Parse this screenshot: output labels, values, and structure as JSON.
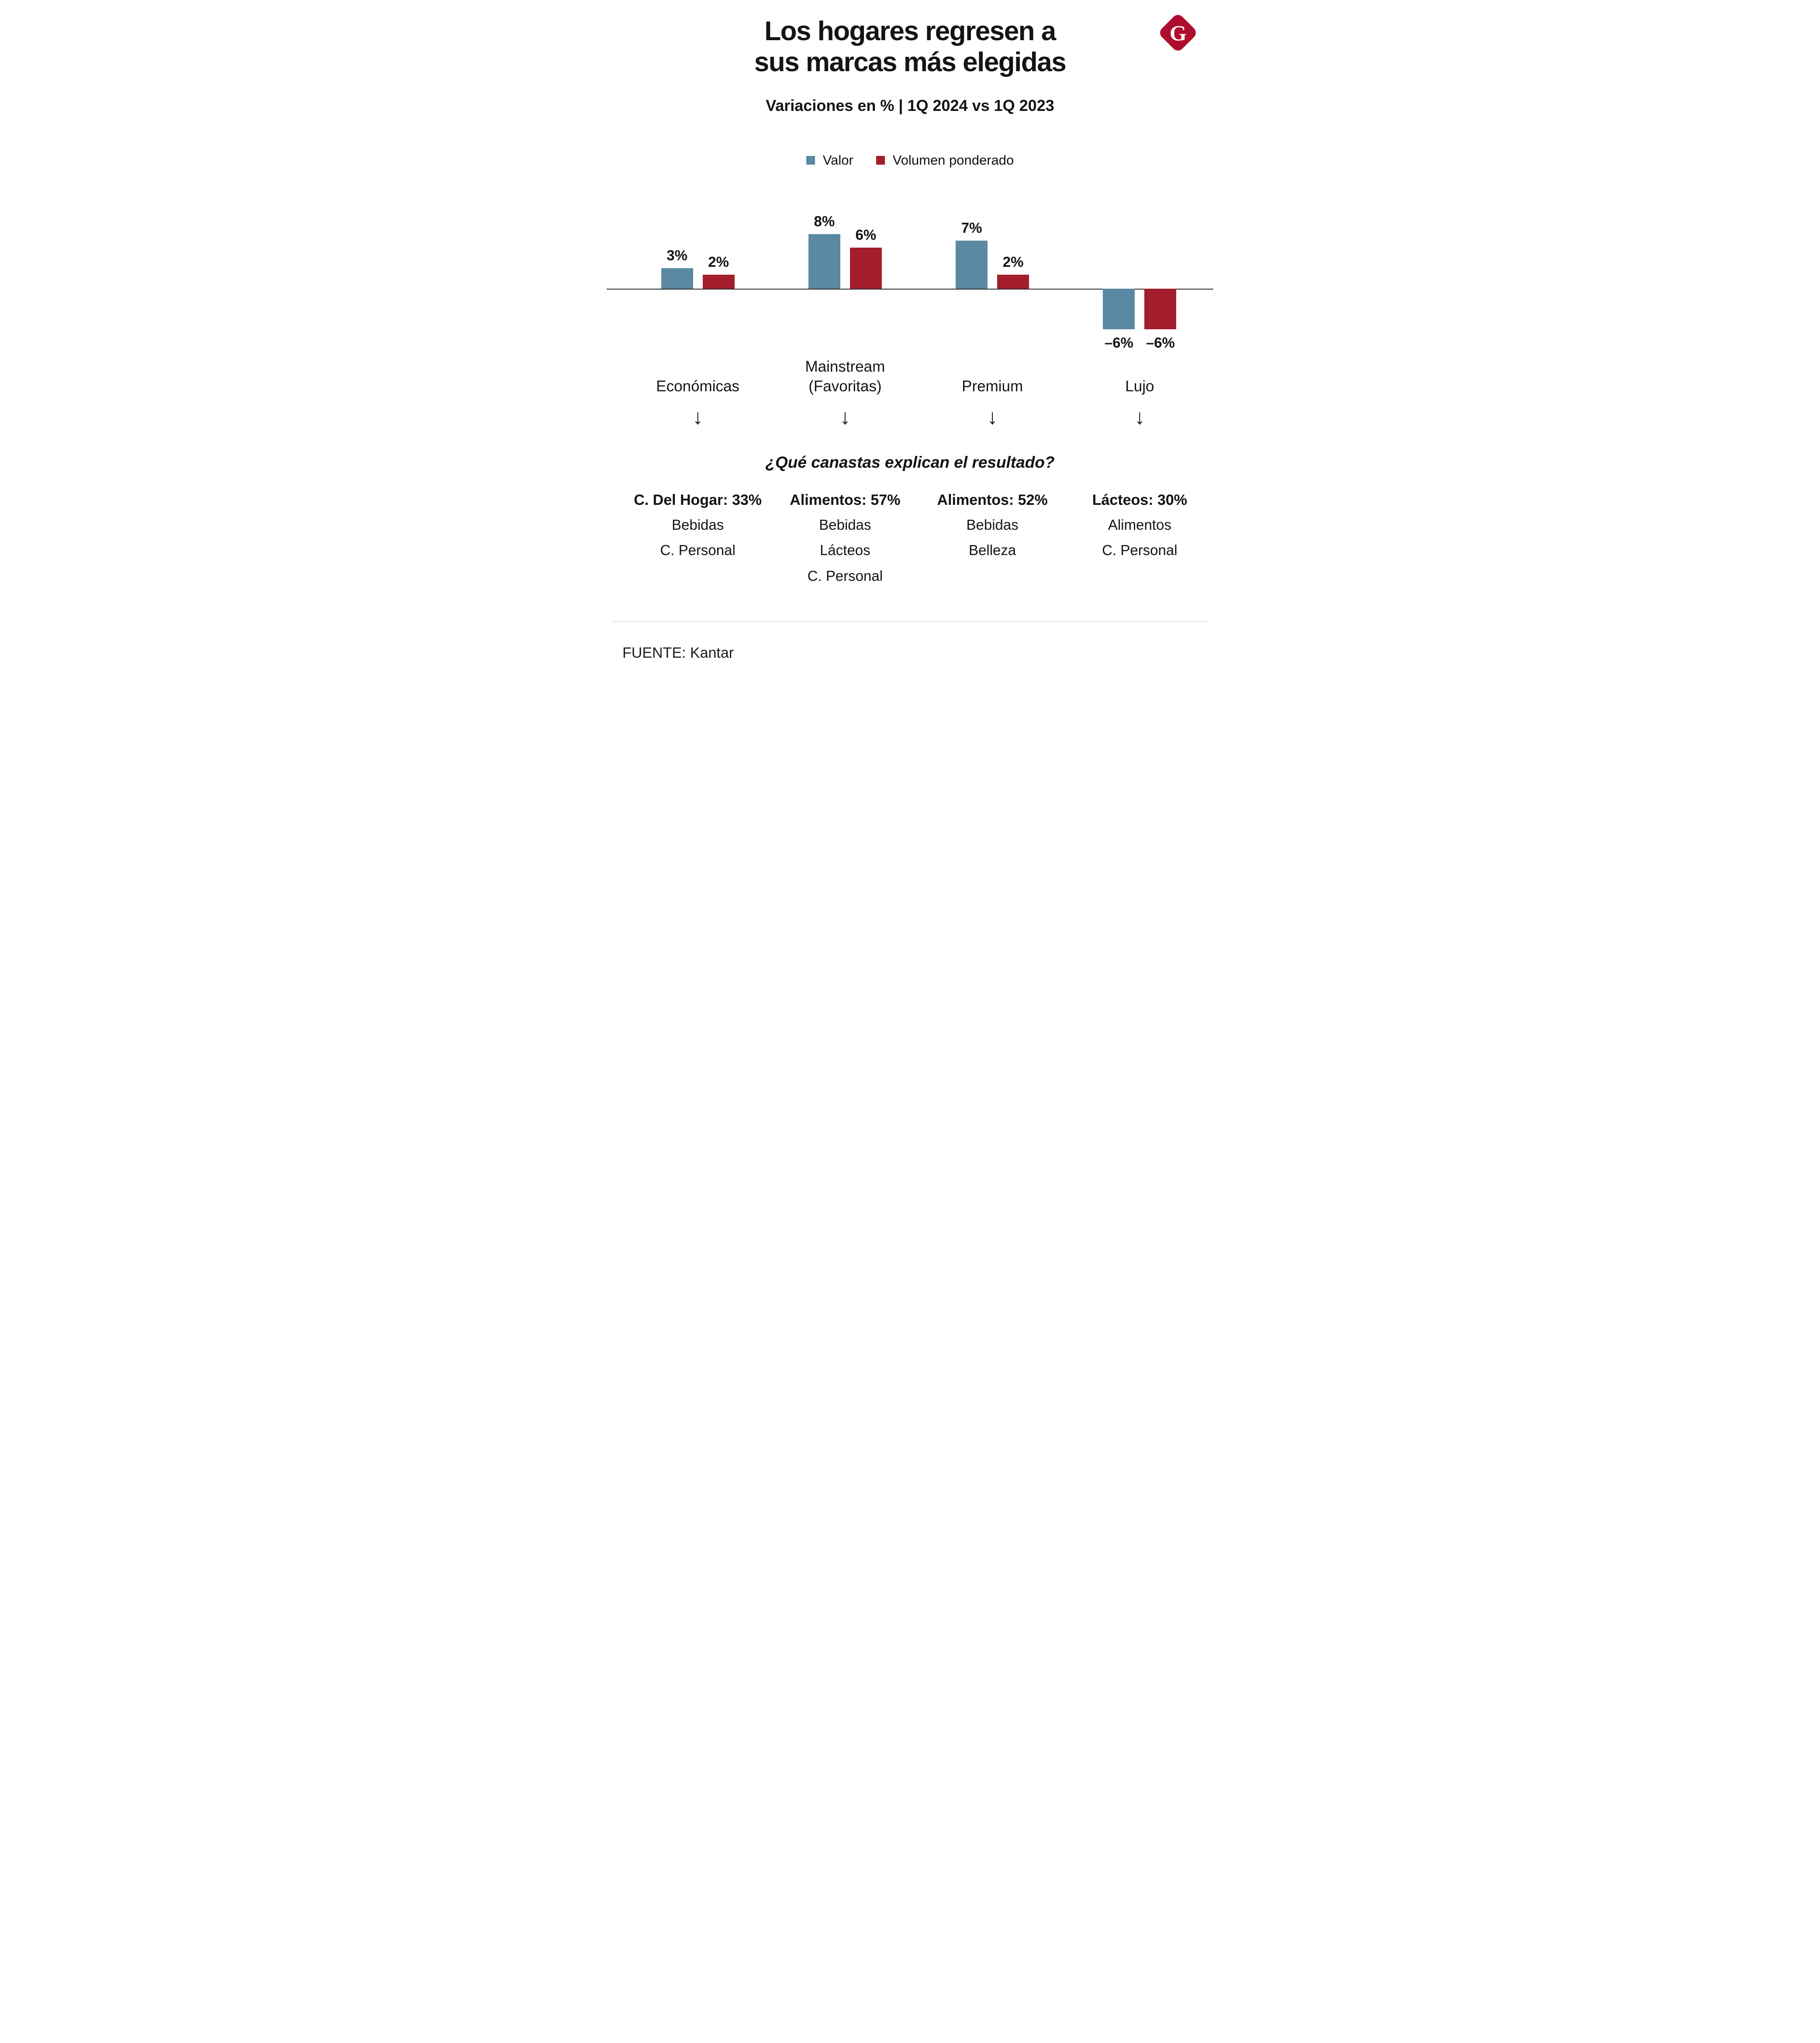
{
  "logo": {
    "letter": "G",
    "color": "#b00d2e"
  },
  "title": {
    "line1": "Los hogares regresen a",
    "line2": "sus marcas más elegidas"
  },
  "subtitle": "Variaciones en % | 1Q 2024 vs 1Q 2023",
  "chart_data": {
    "type": "bar",
    "categories": [
      "Económicas",
      "Mainstream (Favoritas)",
      "Premium",
      "Lujo"
    ],
    "series": [
      {
        "name": "Valor",
        "color": "#5b89a3",
        "values": [
          3,
          8,
          7,
          -6
        ],
        "labels": [
          "3%",
          "8%",
          "7%",
          "–6%"
        ]
      },
      {
        "name": "Volumen ponderado",
        "color": "#a31e2c",
        "values": [
          2,
          6,
          2,
          -6
        ],
        "labels": [
          "2%",
          "6%",
          "2%",
          "–6%"
        ]
      }
    ],
    "unit": "%",
    "ylim": [
      -8,
      10
    ],
    "grid": false,
    "legend_position": "top",
    "baseline_color": "#2a2a2a"
  },
  "category_labels": [
    "Económicas",
    "Mainstream\n(Favoritas)",
    "Premium",
    "Lujo"
  ],
  "arrow": "↓",
  "question": "¿Qué canastas explican el resultado?",
  "breakdown": [
    {
      "header": "C. Del Hogar: 33%",
      "items": [
        "Bebidas",
        "C. Personal"
      ]
    },
    {
      "header": "Alimentos: 57%",
      "items": [
        "Bebidas",
        "Lácteos",
        "C. Personal"
      ]
    },
    {
      "header": "Alimentos: 52%",
      "items": [
        "Bebidas",
        "Belleza"
      ]
    },
    {
      "header": "Lácteos: 30%",
      "items": [
        "Alimentos",
        "C. Personal"
      ]
    }
  ],
  "footer": {
    "source": "FUENTE: Kantar"
  }
}
